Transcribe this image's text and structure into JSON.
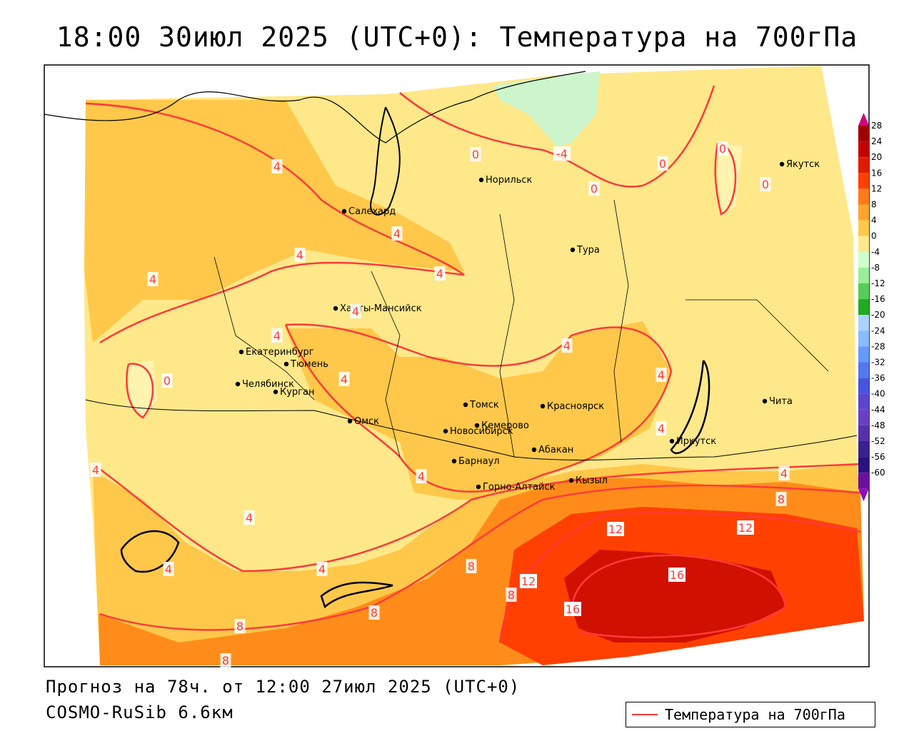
{
  "title": "18:00 30июл 2025 (UTC+0): Температура на 700гПа",
  "forecast_line": "Прогноз на 78ч. от 12:00 27июл 2025 (UTC+0)",
  "model_line": "COSMO-RuSib 6.6км",
  "legend_label": "Температура на 700гПа",
  "cities": [
    {
      "name": "Якутск"
    },
    {
      "name": "Норильск"
    },
    {
      "name": "Салехард"
    },
    {
      "name": "Тура"
    },
    {
      "name": "Ханты-Мансийск"
    },
    {
      "name": "Екатеринбург"
    },
    {
      "name": "Тюмень"
    },
    {
      "name": "Челябинск"
    },
    {
      "name": "Курган"
    },
    {
      "name": "Омск"
    },
    {
      "name": "Новосибирск"
    },
    {
      "name": "Томск"
    },
    {
      "name": "Кемерово"
    },
    {
      "name": "Красноярск"
    },
    {
      "name": "Абакан"
    },
    {
      "name": "Барнаул"
    },
    {
      "name": "Горно-Алтайск"
    },
    {
      "name": "Кызыл"
    },
    {
      "name": "Иркутск"
    },
    {
      "name": "Чита"
    }
  ],
  "contour_labels": [
    "0",
    "-4",
    "0",
    "0",
    "0",
    "0",
    "0",
    "4",
    "4",
    "4",
    "4",
    "4",
    "4",
    "4",
    "4",
    "4",
    "4",
    "4",
    "4",
    "4",
    "4",
    "4",
    "4",
    "4",
    "8",
    "8",
    "8",
    "8",
    "8",
    "8",
    "12",
    "12",
    "12",
    "16",
    "16"
  ],
  "colorbar": {
    "labels": [
      "28",
      "24",
      "20",
      "16",
      "12",
      "8",
      "4",
      "0",
      "-4",
      "-8",
      "-12",
      "-16",
      "-20",
      "-24",
      "-28",
      "-32",
      "-36",
      "-40",
      "-44",
      "-48",
      "-52",
      "-56",
      "-60"
    ],
    "colors": [
      "#a10000",
      "#c40000",
      "#e21a00",
      "#ff4000",
      "#ff7a1a",
      "#ffa52e",
      "#ffc84a",
      "#ffe88a",
      "#ccffcc",
      "#99ee99",
      "#55cc55",
      "#22aa22",
      "#aad4ff",
      "#88bbff",
      "#6699ff",
      "#5577ee",
      "#4455dd",
      "#5a45cc",
      "#6a3fc4",
      "#5530aa",
      "#3a2090",
      "#2a1080",
      "#6a0fa0"
    ]
  }
}
